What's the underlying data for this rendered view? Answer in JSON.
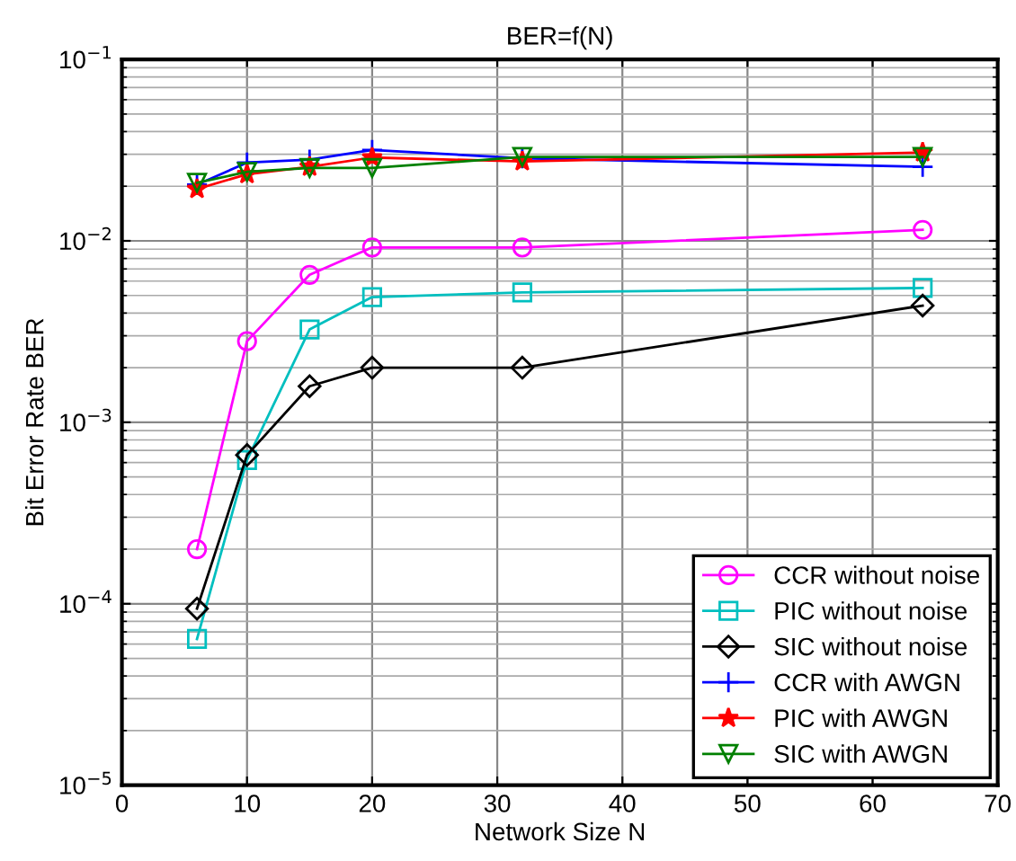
{
  "chart_data": {
    "type": "line",
    "title": "BER=f(N)",
    "xlabel": "Network Size N",
    "ylabel": "Bit Error Rate BER",
    "log": "y",
    "grid": true,
    "legend": "bottom right",
    "x": [
      6,
      10,
      15,
      20,
      32,
      64
    ],
    "xlim": [
      0,
      70
    ],
    "xticks": [
      0,
      10,
      20,
      30,
      40,
      50,
      60,
      70
    ],
    "ylim": [
      1e-05,
      0.1
    ],
    "yticks": [
      {
        "value": 1e-05,
        "label": "10$^{−5}$"
      },
      {
        "value": 0.0001,
        "label": "10$^{−4}$"
      },
      {
        "value": 0.001,
        "label": "10$^{−3}$"
      },
      {
        "value": 0.01,
        "label": "10$^{−2}$"
      },
      {
        "value": 0.1,
        "label": "10$^{−1}$"
      }
    ],
    "series": [
      {
        "name": "CCR without noise",
        "color": "#ff00ff",
        "marker": "circle",
        "values": [
          0.0002,
          0.0028,
          0.0065,
          0.0092,
          0.0092,
          0.0115
        ]
      },
      {
        "name": "PIC without noise",
        "color": "#00bfbf",
        "marker": "square",
        "values": [
          6.4e-05,
          0.00062,
          0.00325,
          0.0049,
          0.0052,
          0.0055
        ]
      },
      {
        "name": "SIC without noise",
        "color": "#000000",
        "marker": "diamond",
        "values": [
          9.4e-05,
          0.00066,
          0.00158,
          0.002,
          0.002,
          0.0044
        ]
      },
      {
        "name": "CCR with AWGN",
        "color": "#0000ff",
        "marker": "cross",
        "values": [
          0.0204,
          0.027,
          0.028,
          0.0317,
          0.0285,
          0.0256
        ]
      },
      {
        "name": "PIC with AWGN",
        "color": "#ff0000",
        "marker": "star",
        "values": [
          0.0193,
          0.0233,
          0.0256,
          0.0288,
          0.0274,
          0.0307
        ]
      },
      {
        "name": "SIC with AWGN",
        "color": "#008000",
        "marker": "triangle",
        "values": [
          0.0209,
          0.024,
          0.0252,
          0.0252,
          0.029,
          0.029
        ]
      }
    ]
  }
}
